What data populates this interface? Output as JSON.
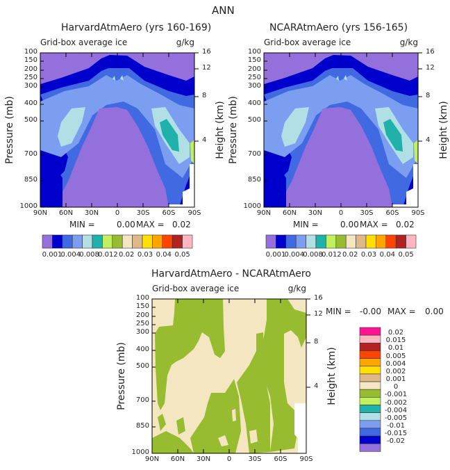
{
  "page_title": "ANN",
  "colors": {
    "purple": "#9370DB",
    "darkblue": "#0000CD",
    "royalblue": "#4169E1",
    "cornflower": "#7B9EF0",
    "powderblue": "#B0E0E6",
    "teal": "#20B2AA",
    "lightgreen": "#C0F05F",
    "olive": "#98BC30",
    "wheat": "#F5E6C2",
    "tan": "#DEB887",
    "gold": "#FFE000",
    "orange": "#FFA500",
    "orangered": "#FF4500",
    "firebrick": "#B22222",
    "pink": "#FFB6C1",
    "deeppink": "#FF1493"
  },
  "chart_data": [
    {
      "type": "heatmap",
      "title": "HarvardAtmAero (yrs 160-169)",
      "subtitle": "Grid-box average ice",
      "units": "g/kg",
      "ylabel": "Pressure (mb)",
      "ylabel_right": "Height (km)",
      "x_ticks": [
        "90N",
        "60N",
        "30N",
        "0",
        "30S",
        "60S",
        "90S"
      ],
      "y_ticks": [
        "100",
        "150",
        "200",
        "250",
        "300",
        "400",
        "500",
        "700",
        "850",
        "1000"
      ],
      "y_right_ticks": [
        "16",
        "12",
        "8",
        "4"
      ],
      "min_label": "MIN =",
      "min_value": "0.00",
      "max_label": "MAX =",
      "max_value": "0.02",
      "colorbar_labels": [
        "0.001",
        "0.004",
        "0.008",
        "0.012",
        "0.02",
        "0.03",
        "0.04",
        "0.05"
      ]
    },
    {
      "type": "heatmap",
      "title": "NCARAtmAero (yrs 156-165)",
      "subtitle": "Grid-box average ice",
      "units": "g/kg",
      "ylabel": "Pressure (mb)",
      "ylabel_right": "Height (km)",
      "x_ticks": [
        "90N",
        "60N",
        "30N",
        "0",
        "30S",
        "60S",
        "90S"
      ],
      "y_ticks": [
        "100",
        "150",
        "200",
        "250",
        "300",
        "400",
        "500",
        "700",
        "850",
        "1000"
      ],
      "y_right_ticks": [
        "16",
        "12",
        "8",
        "4"
      ],
      "min_label": "MIN =",
      "min_value": "0.00",
      "max_label": "MAX =",
      "max_value": "0.02",
      "colorbar_labels": [
        "0.001",
        "0.004",
        "0.008",
        "0.012",
        "0.02",
        "0.03",
        "0.04",
        "0.05"
      ]
    },
    {
      "type": "heatmap",
      "title": "HarvardAtmAero - NCARAtmAero",
      "subtitle": "Grid-box average ice",
      "units": "g/kg",
      "ylabel": "Pressure (mb)",
      "ylabel_right": "Height (km)",
      "x_ticks": [
        "90N",
        "60N",
        "30N",
        "0",
        "30S",
        "60S",
        "90S"
      ],
      "y_ticks": [
        "100",
        "150",
        "200",
        "250",
        "300",
        "400",
        "500",
        "700",
        "850",
        "1000"
      ],
      "y_right_ticks": [
        "16",
        "12",
        "8",
        "4"
      ],
      "min_label": "MIN =",
      "min_value": "-0.00",
      "max_label": "MAX =",
      "max_value": "0.00",
      "colorbar_labels": [
        "0.02",
        "0.015",
        "0.01",
        "0.005",
        "0.004",
        "0.002",
        "0.001",
        "0",
        "-0.001",
        "-0.002",
        "-0.004",
        "-0.005",
        "-0.01",
        "-0.015",
        "-0.02"
      ]
    }
  ]
}
